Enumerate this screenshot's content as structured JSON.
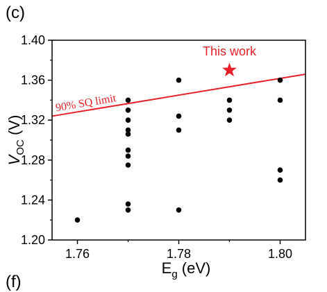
{
  "panel_labels": {
    "top": "(c)",
    "bottom": "(f)"
  },
  "chart_data": {
    "type": "scatter",
    "xlabel": "E",
    "xlabel_sub": "g",
    "xlabel_unit": " (eV)",
    "ylabel": "V",
    "ylabel_sub": "OC",
    "ylabel_unit": " (V)",
    "xlim": [
      1.755,
      1.805
    ],
    "ylim": [
      1.2,
      1.4
    ],
    "xticks": [
      1.76,
      1.78,
      1.8
    ],
    "xtick_labels": [
      "1.76",
      "1.78",
      "1.80"
    ],
    "yticks": [
      1.2,
      1.24,
      1.28,
      1.32,
      1.36,
      1.4
    ],
    "ytick_labels": [
      "1.20",
      "1.24",
      "1.28",
      "1.32",
      "1.36",
      "1.40"
    ],
    "grid": false,
    "colors": {
      "points": "#000000",
      "highlight": "#e8202a",
      "line": "#e8202a"
    },
    "series": [
      {
        "points": [
          {
            "x": 1.76,
            "y": 1.22
          },
          {
            "x": 1.77,
            "y": 1.34
          },
          {
            "x": 1.77,
            "y": 1.33
          },
          {
            "x": 1.77,
            "y": 1.32
          },
          {
            "x": 1.77,
            "y": 1.31
          },
          {
            "x": 1.77,
            "y": 1.306
          },
          {
            "x": 1.77,
            "y": 1.29
          },
          {
            "x": 1.77,
            "y": 1.284
          },
          {
            "x": 1.77,
            "y": 1.275
          },
          {
            "x": 1.77,
            "y": 1.236
          },
          {
            "x": 1.77,
            "y": 1.23
          },
          {
            "x": 1.78,
            "y": 1.36
          },
          {
            "x": 1.78,
            "y": 1.324
          },
          {
            "x": 1.78,
            "y": 1.31
          },
          {
            "x": 1.78,
            "y": 1.23
          },
          {
            "x": 1.79,
            "y": 1.34
          },
          {
            "x": 1.79,
            "y": 1.33
          },
          {
            "x": 1.79,
            "y": 1.32
          },
          {
            "x": 1.8,
            "y": 1.36
          },
          {
            "x": 1.8,
            "y": 1.34
          },
          {
            "x": 1.8,
            "y": 1.27
          },
          {
            "x": 1.8,
            "y": 1.26
          }
        ]
      },
      {
        "marker": "star",
        "points": [
          {
            "x": 1.79,
            "y": 1.37
          }
        ]
      }
    ],
    "reference_line": {
      "x": [
        1.755,
        1.805
      ],
      "y": [
        1.324,
        1.366
      ]
    },
    "annotations": {
      "sq_limit": "90% SQ limit",
      "this_work": "This work"
    }
  }
}
